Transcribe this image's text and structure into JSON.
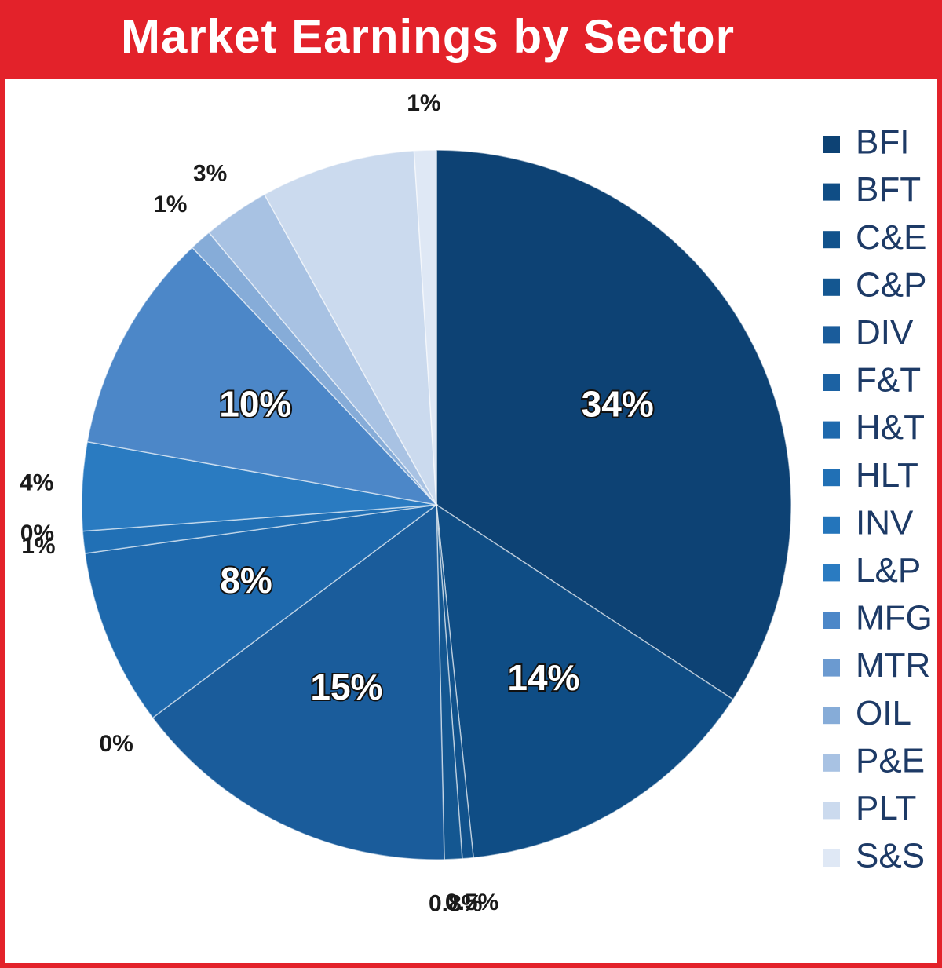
{
  "chart_data": {
    "type": "pie",
    "title": "Market Earnings by Sector",
    "slices": [
      {
        "name": "BFI",
        "value": 34,
        "label": "34%",
        "color": "#0d4274"
      },
      {
        "name": "BFT",
        "value": 14,
        "label": "14%",
        "color": "#0f4d85"
      },
      {
        "name": "C&E",
        "value": 0.5,
        "label": "0.5%",
        "color": "#11528c"
      },
      {
        "name": "C&P",
        "value": 0.8,
        "label": "0.8%",
        "color": "#145791"
      },
      {
        "name": "DIV",
        "value": 15,
        "label": "15%",
        "color": "#1a5c9b"
      },
      {
        "name": "F&T",
        "value": 0,
        "label": "0%",
        "color": "#1c62a3"
      },
      {
        "name": "H&T",
        "value": 8,
        "label": "8%",
        "color": "#1e69ad"
      },
      {
        "name": "HLT",
        "value": 1,
        "label": "1%",
        "color": "#2170b5"
      },
      {
        "name": "INV",
        "value": 0,
        "label": "0%",
        "color": "#2475bb"
      },
      {
        "name": "L&P",
        "value": 4,
        "label": "4%",
        "color": "#2a7bc1"
      },
      {
        "name": "MFG",
        "value": 10,
        "label": "10%",
        "color": "#4c87c8"
      },
      {
        "name": "MTR",
        "value": 0,
        "label": "",
        "color": "#6b9ad0"
      },
      {
        "name": "OIL",
        "value": 1,
        "label": "1%",
        "color": "#86acd8"
      },
      {
        "name": "P&E",
        "value": 3,
        "label": "3%",
        "color": "#a8c2e3"
      },
      {
        "name": "PLT",
        "value": 7,
        "label": "",
        "color": "#cbdaee"
      },
      {
        "name": "S&S",
        "value": 1,
        "label": "1%",
        "color": "#dfe8f5"
      }
    ],
    "legend_position": "right"
  }
}
